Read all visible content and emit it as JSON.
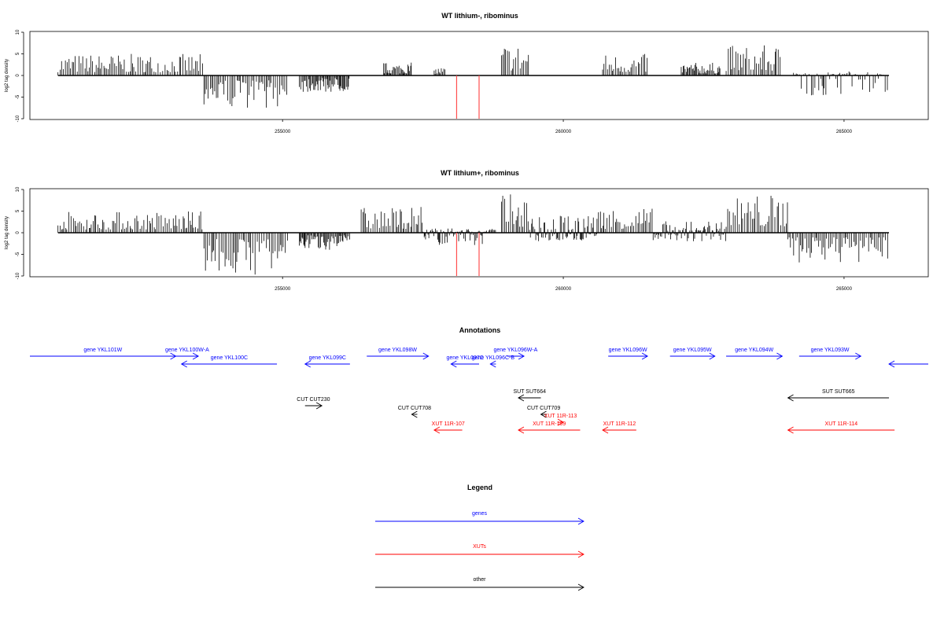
{
  "chart_data": [
    {
      "type": "bar",
      "title": "WT lithium-, ribominus",
      "xlabel": "",
      "ylabel": "log2 tag density",
      "xlim": [
        250500,
        266500
      ],
      "ylim": [
        -10,
        10
      ],
      "x_ticks": [
        "255000",
        "260000",
        "265000"
      ],
      "y_ticks": [
        "-10",
        "-5",
        "0",
        "5",
        "10"
      ],
      "grid": false,
      "segments": [
        {
          "from": 251000,
          "to": 253600,
          "min": 0,
          "max": 5
        },
        {
          "from": 253600,
          "to": 255100,
          "min": -7.5,
          "max": 0
        },
        {
          "from": 255300,
          "to": 256200,
          "min": -4,
          "max": 0
        },
        {
          "from": 256800,
          "to": 257300,
          "min": 0,
          "max": 3
        },
        {
          "from": 257700,
          "to": 257900,
          "min": 0,
          "max": 2
        },
        {
          "from": 258900,
          "to": 259400,
          "min": 0,
          "max": 7.5
        },
        {
          "from": 260700,
          "to": 261500,
          "min": 0,
          "max": 5
        },
        {
          "from": 262100,
          "to": 262800,
          "min": 0,
          "max": 3
        },
        {
          "from": 262900,
          "to": 263900,
          "min": 0,
          "max": 7
        },
        {
          "from": 264100,
          "to": 265800,
          "min": -5,
          "max": 1
        }
      ],
      "highlight_lines": [
        {
          "x": 258100,
          "min": -10,
          "max": 0,
          "color": "#ff5050"
        },
        {
          "x": 258500,
          "min": -10,
          "max": 0,
          "color": "#ff5050"
        }
      ]
    },
    {
      "type": "bar",
      "title": "WT lithium+, ribominus",
      "xlabel": "",
      "ylabel": "log2 tag density",
      "xlim": [
        250500,
        266500
      ],
      "ylim": [
        -10,
        10
      ],
      "x_ticks": [
        "255000",
        "260000",
        "265000"
      ],
      "y_ticks": [
        "-10",
        "-5",
        "0",
        "5",
        "10"
      ],
      "grid": false,
      "segments": [
        {
          "from": 251000,
          "to": 253600,
          "min": 0,
          "max": 5
        },
        {
          "from": 253600,
          "to": 255100,
          "min": -10,
          "max": 0
        },
        {
          "from": 255300,
          "to": 256200,
          "min": -4,
          "max": 0
        },
        {
          "from": 256400,
          "to": 257500,
          "min": 0,
          "max": 6
        },
        {
          "from": 257500,
          "to": 258800,
          "min": -3,
          "max": 1
        },
        {
          "from": 258900,
          "to": 259400,
          "min": 0,
          "max": 9
        },
        {
          "from": 259400,
          "to": 260600,
          "min": -2,
          "max": 4
        },
        {
          "from": 260600,
          "to": 261600,
          "min": 0,
          "max": 6
        },
        {
          "from": 261600,
          "to": 262900,
          "min": -2,
          "max": 3
        },
        {
          "from": 262900,
          "to": 264000,
          "min": 0,
          "max": 9
        },
        {
          "from": 264000,
          "to": 265800,
          "min": -7,
          "max": 0
        }
      ],
      "highlight_lines": [
        {
          "x": 258100,
          "min": -10,
          "max": 0,
          "color": "#ff5050"
        },
        {
          "x": 258500,
          "min": -10,
          "max": 0,
          "color": "#ff5050"
        }
      ]
    }
  ],
  "annotations": {
    "title": "Annotations",
    "features": [
      {
        "label": "gene YKL101W",
        "color": "#0000ff",
        "from": 250500,
        "to": 253100,
        "strand": "+",
        "row": 0
      },
      {
        "label": "gene YKL100W-A",
        "color": "#0000ff",
        "from": 253100,
        "to": 253500,
        "strand": "+",
        "row": 0
      },
      {
        "label": "gene YKL100C",
        "color": "#0000ff",
        "from": 253200,
        "to": 254900,
        "strand": "-",
        "row": 1
      },
      {
        "label": "gene YKL099C",
        "color": "#0000ff",
        "from": 255400,
        "to": 256200,
        "strand": "-",
        "row": 1
      },
      {
        "label": "gene YKL098W",
        "color": "#0000ff",
        "from": 256500,
        "to": 257600,
        "strand": "+",
        "row": 0
      },
      {
        "label": "gene YKL096W-A",
        "color": "#0000ff",
        "from": 259000,
        "to": 259300,
        "strand": "+",
        "row": 0
      },
      {
        "label": "gene YKL096C-B",
        "color": "#0000ff",
        "from": 258700,
        "to": 258800,
        "strand": "-",
        "row": 1
      },
      {
        "label": "gene YKL097C",
        "color": "#0000ff",
        "from": 258000,
        "to": 258500,
        "strand": "-",
        "row": 1
      },
      {
        "label": "gene YKL096W",
        "color": "#0000ff",
        "from": 260800,
        "to": 261500,
        "strand": "+",
        "row": 0
      },
      {
        "label": "gene YKL095W",
        "color": "#0000ff",
        "from": 261900,
        "to": 262700,
        "strand": "+",
        "row": 0
      },
      {
        "label": "gene YKL094W",
        "color": "#0000ff",
        "from": 262900,
        "to": 263900,
        "strand": "+",
        "row": 0
      },
      {
        "label": "gene YKL093W",
        "color": "#0000ff",
        "from": 264200,
        "to": 265300,
        "strand": "+",
        "row": 0
      },
      {
        "label": "",
        "color": "#0000ff",
        "from": 265800,
        "to": 266500,
        "strand": "-",
        "row": 1
      },
      {
        "label": "SUT SUT664",
        "color": "#000000",
        "from": 259200,
        "to": 259600,
        "strand": "-",
        "row": 4
      },
      {
        "label": "SUT SUT665",
        "color": "#000000",
        "from": 264000,
        "to": 265800,
        "strand": "-",
        "row": 4
      },
      {
        "label": "CUT CUT230",
        "color": "#000000",
        "from": 255400,
        "to": 255700,
        "strand": "+",
        "row": 5
      },
      {
        "label": "CUT CUT708",
        "color": "#000000",
        "from": 257300,
        "to": 257400,
        "strand": "-",
        "row": 6
      },
      {
        "label": "CUT CUT709",
        "color": "#000000",
        "from": 259600,
        "to": 259700,
        "strand": "-",
        "row": 6
      },
      {
        "label": "XUT 11R-113",
        "color": "#ff0000",
        "from": 259900,
        "to": 260000,
        "strand": "+",
        "row": 7
      },
      {
        "label": "XUT 11R-107",
        "color": "#ff0000",
        "from": 257700,
        "to": 258200,
        "strand": "-",
        "row": 8
      },
      {
        "label": "XUT 11R-109",
        "color": "#ff0000",
        "from": 259200,
        "to": 260300,
        "strand": "-",
        "row": 8
      },
      {
        "label": "XUT 11R-112",
        "color": "#ff0000",
        "from": 260700,
        "to": 261300,
        "strand": "-",
        "row": 8
      },
      {
        "label": "XUT 11R-114",
        "color": "#ff0000",
        "from": 264000,
        "to": 265900,
        "strand": "-",
        "row": 8
      }
    ]
  },
  "legend": {
    "title": "Legend",
    "items": [
      {
        "label": "genes",
        "color": "#0000ff"
      },
      {
        "label": "XUTs",
        "color": "#ff0000"
      },
      {
        "label": "other",
        "color": "#000000"
      }
    ]
  }
}
